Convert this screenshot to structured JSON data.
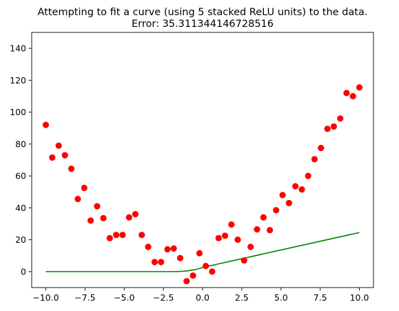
{
  "chart_data": {
    "type": "scatter",
    "title": "Attempting to fit a curve (using 5 stacked ReLU units) to the data.",
    "subtitle": "Error: 35.311344146728516",
    "xlabel": "",
    "ylabel": "",
    "xlim": [
      -10.9,
      10.9
    ],
    "ylim": [
      -10,
      150
    ],
    "xticks": [
      -10.0,
      -7.5,
      -5.0,
      -2.5,
      0.0,
      2.5,
      5.0,
      7.5,
      10.0
    ],
    "xtick_labels": [
      "−10.0",
      "−7.5",
      "−5.0",
      "−2.5",
      "0.0",
      "2.5",
      "5.0",
      "7.5",
      "10.0"
    ],
    "yticks": [
      0,
      20,
      40,
      60,
      80,
      100,
      120,
      140
    ],
    "ytick_labels": [
      "0",
      "20",
      "40",
      "60",
      "80",
      "100",
      "120",
      "140"
    ],
    "grid": false,
    "series": [
      {
        "kind": "scatter",
        "color": "#ff0000",
        "x": [
          -10.0,
          -9.59,
          -9.18,
          -8.78,
          -8.37,
          -7.96,
          -7.55,
          -7.14,
          -6.73,
          -6.33,
          -5.92,
          -5.51,
          -5.1,
          -4.69,
          -4.29,
          -3.88,
          -3.47,
          -3.06,
          -2.65,
          -2.24,
          -1.84,
          -1.43,
          -1.02,
          -0.61,
          -0.2,
          0.2,
          0.61,
          1.02,
          1.43,
          1.84,
          2.24,
          2.65,
          3.06,
          3.47,
          3.88,
          4.29,
          4.69,
          5.1,
          5.51,
          5.92,
          6.33,
          6.73,
          7.14,
          7.55,
          7.96,
          8.37,
          8.78,
          9.18,
          9.59,
          10.0
        ],
        "y": [
          92,
          71.5,
          79,
          73,
          64.5,
          45.5,
          52.5,
          32,
          41,
          33.5,
          21,
          23,
          23,
          34,
          36,
          23,
          15.5,
          6,
          6,
          14,
          14.5,
          8.5,
          -6,
          -2.5,
          11.5,
          3.5,
          0,
          21,
          22.5,
          29.5,
          20,
          7,
          15.5,
          26.5,
          34,
          26,
          38.5,
          48,
          43,
          53.5,
          51.5,
          60,
          70.5,
          77.5,
          89.5,
          91,
          96,
          112,
          110,
          115.5
        ]
      },
      {
        "kind": "line",
        "color": "#008000",
        "x": [
          -10.0,
          -2.0,
          -1.5,
          -1.0,
          -0.5,
          0.0,
          0.5,
          1.0,
          10.0
        ],
        "y": [
          0,
          0,
          0.1,
          0.4,
          1.2,
          2.5,
          3.7,
          4.8,
          24.5
        ]
      }
    ]
  }
}
